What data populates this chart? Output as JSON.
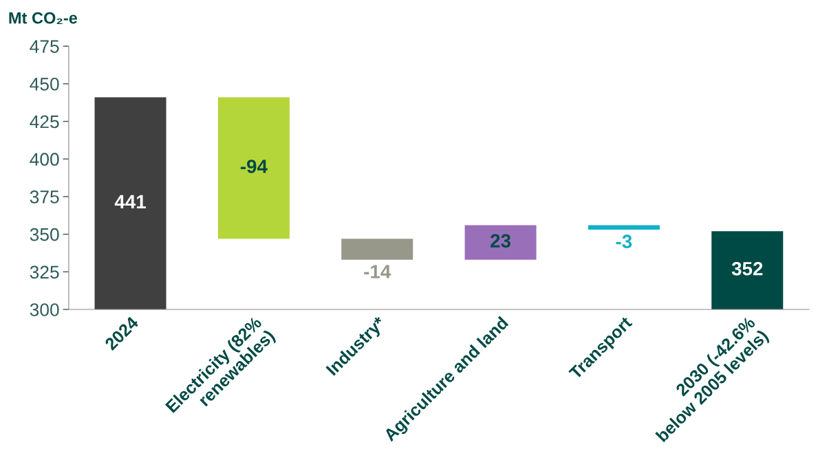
{
  "chart_data": {
    "type": "bar",
    "ylabel": "Mt CO₂-e",
    "categories": [
      "2024",
      "Electricity (82%\nrenewables)",
      "Industry*",
      "Agriculture and land",
      "Transport",
      "2030 (-42.6%\nbelow 2005 levels)"
    ],
    "values": [
      441,
      -94,
      -14,
      23,
      -3,
      352
    ],
    "base": [
      null,
      441,
      347,
      333,
      356,
      null
    ],
    "colors": [
      "#404040",
      "#b5d63a",
      "#97978a",
      "#9a6fba",
      "#12b0c8",
      "#004a45"
    ],
    "value_labels": [
      "441",
      "-94",
      "-14",
      "23",
      "-3",
      "352"
    ],
    "ylim": [
      300,
      475
    ],
    "yticks": [
      300,
      325,
      350,
      375,
      400,
      425,
      450,
      475
    ],
    "grid": false,
    "legend": false
  }
}
